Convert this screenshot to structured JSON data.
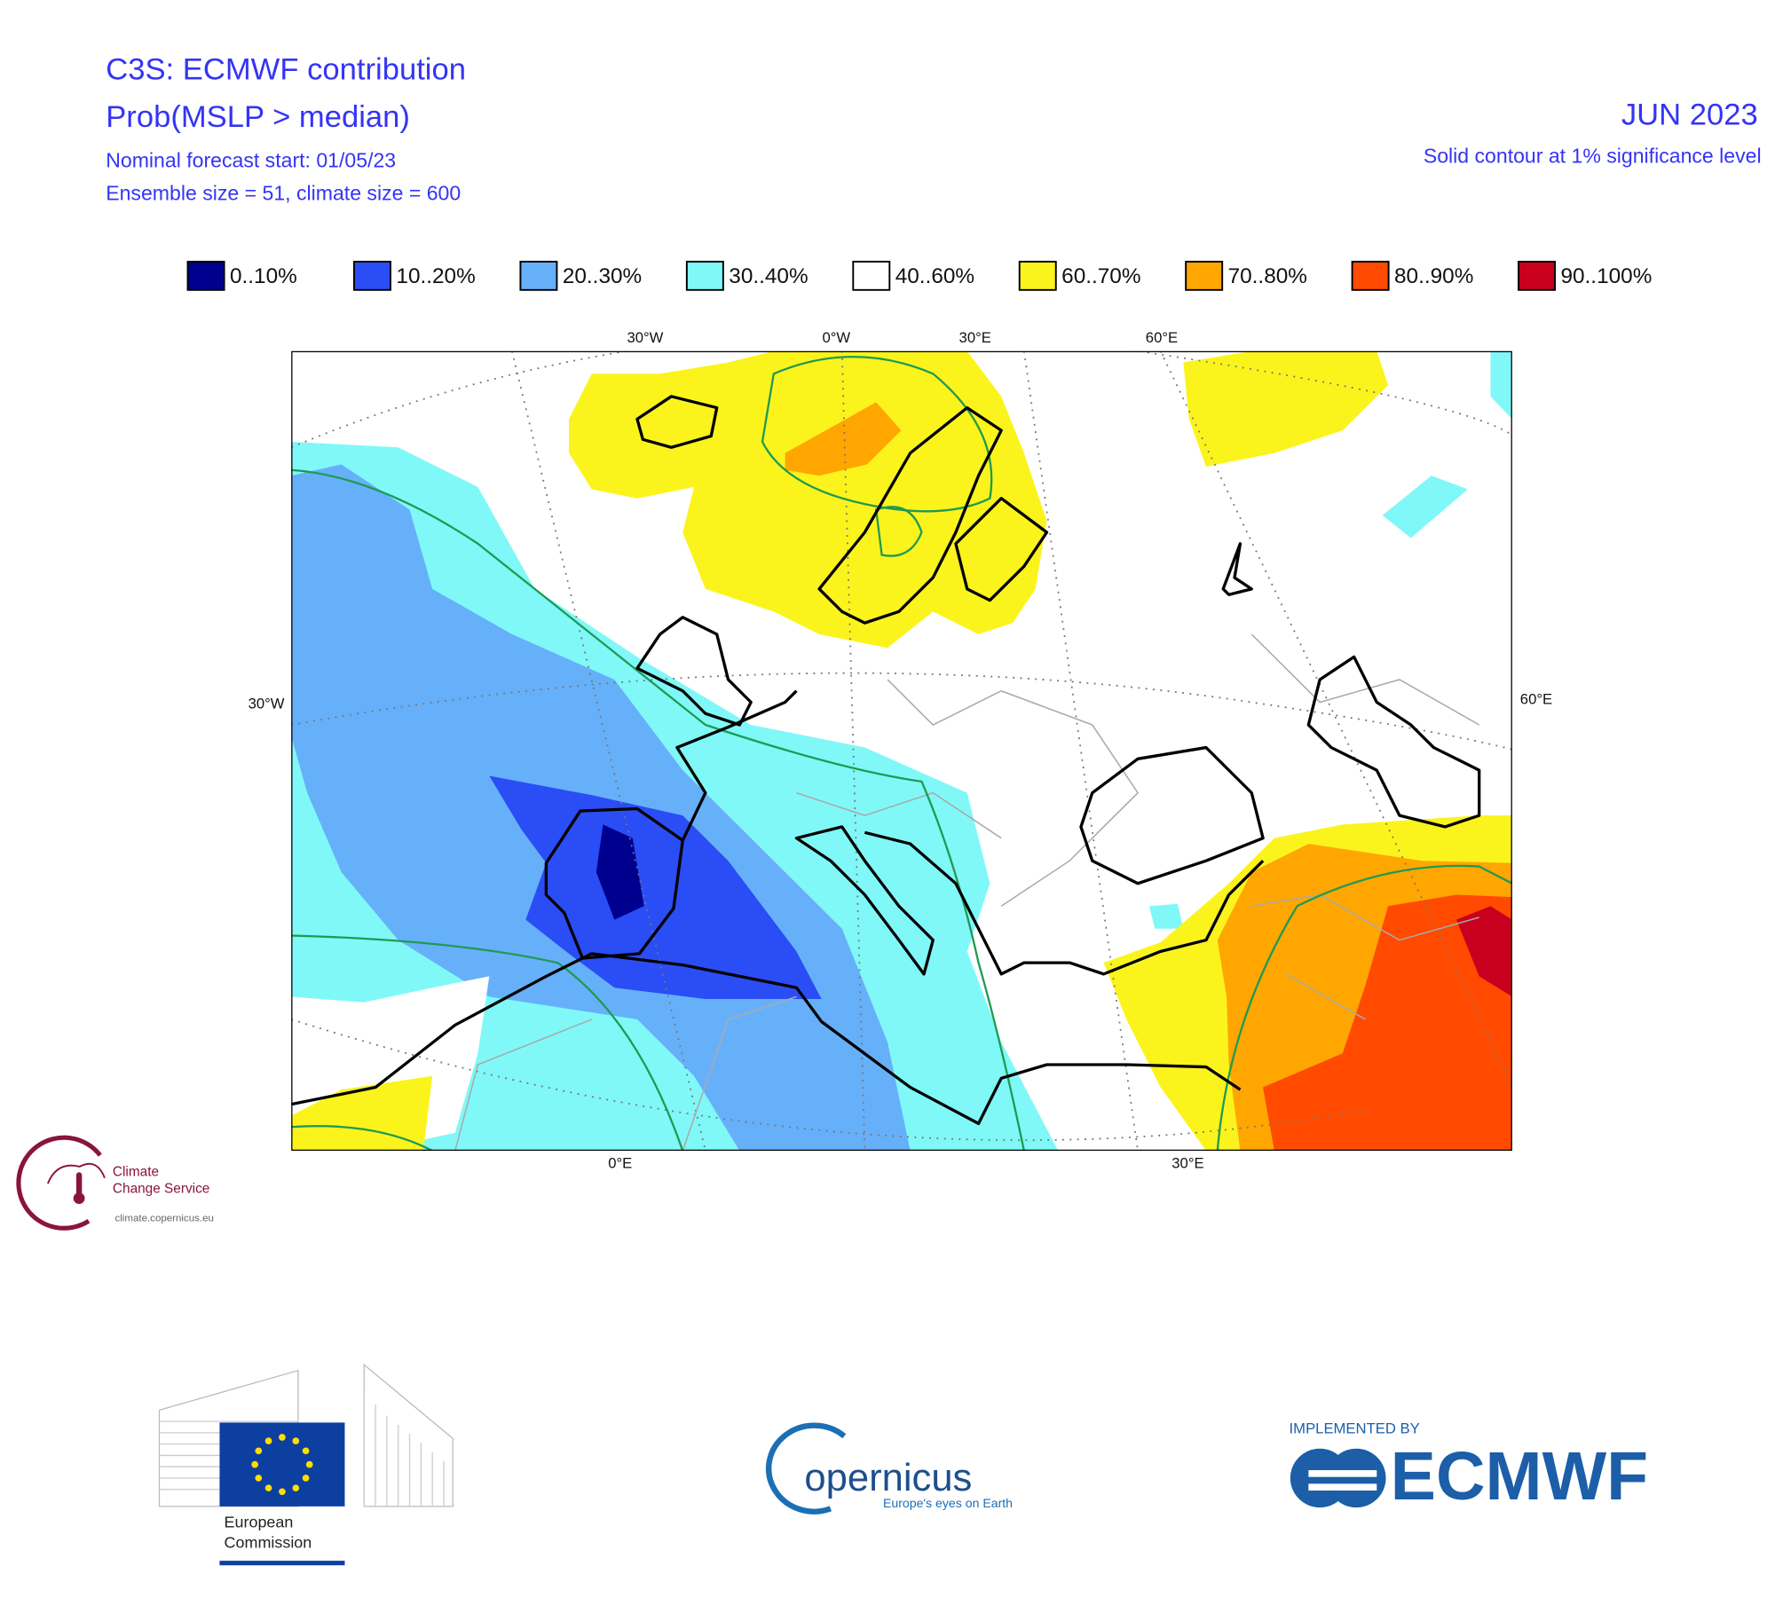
{
  "header": {
    "title": "C3S: ECMWF contribution",
    "subtitle": "Prob(MSLP > median)",
    "forecast_start": "Nominal forecast start: 01/05/23",
    "ensemble": "Ensemble size = 51, climate size = 600",
    "month": "JUN 2023",
    "significance": "Solid contour at 1% significance level"
  },
  "legend": [
    {
      "label": "0..10%",
      "color": "#00008f"
    },
    {
      "label": "10..20%",
      "color": "#2a4df5"
    },
    {
      "label": "20..30%",
      "color": "#66b0fa"
    },
    {
      "label": "30..40%",
      "color": "#80f8f8"
    },
    {
      "label": "40..60%",
      "color": "#ffffff"
    },
    {
      "label": "60..70%",
      "color": "#fbf41c"
    },
    {
      "label": "70..80%",
      "color": "#ffa600"
    },
    {
      "label": "80..90%",
      "color": "#ff4a00"
    },
    {
      "label": "90..100%",
      "color": "#c8001e"
    }
  ],
  "map": {
    "top_labels": [
      "30°W",
      "0°W",
      "30°E",
      "60°E"
    ],
    "left_label": "30°W",
    "right_label": "60°E",
    "bottom_labels": [
      "0°E",
      "30°E"
    ]
  },
  "logos": {
    "climate_service": [
      "Climate",
      "Change Service"
    ],
    "climate_url": "climate.copernicus.eu",
    "commission": [
      "European",
      "Commission"
    ],
    "copernicus": "opernicus",
    "copernicus_tagline": "Europe's eyes on Earth",
    "implemented_by": "IMPLEMENTED BY",
    "ecmwf": "ECMWF"
  }
}
